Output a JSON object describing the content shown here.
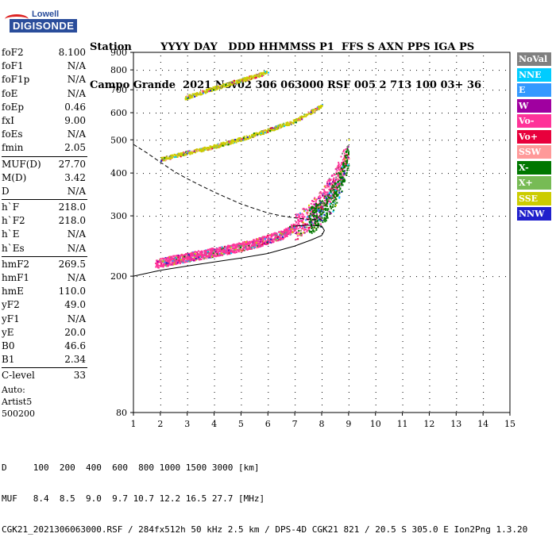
{
  "logo": {
    "line1": "Lowell",
    "line2": "DIGISONDE"
  },
  "header": {
    "line1": "Station        YYYY DAY   DDD HHMMSS P1  FFS S AXN PPS IGA PS",
    "line2": "Campo Grande  2021 Nov02 306 063000 RSF 005 2 713 100 03+ 36"
  },
  "params": [
    {
      "label": "foF2",
      "value": "8.100"
    },
    {
      "label": "foF1",
      "value": "N/A"
    },
    {
      "label": "foF1p",
      "value": "N/A"
    },
    {
      "label": "foE",
      "value": "N/A"
    },
    {
      "label": "foEp",
      "value": "0.46"
    },
    {
      "label": "fxI",
      "value": "9.00"
    },
    {
      "label": "foEs",
      "value": "N/A"
    },
    {
      "label": "fmin",
      "value": "2.05"
    },
    {
      "label": "MUF(D)",
      "value": "27.70"
    },
    {
      "label": "M(D)",
      "value": "3.42"
    },
    {
      "label": "D",
      "value": "N/A"
    },
    {
      "label": "h`F",
      "value": "218.0"
    },
    {
      "label": "h`F2",
      "value": "218.0"
    },
    {
      "label": "h`E",
      "value": "N/A"
    },
    {
      "label": "h`Es",
      "value": "N/A"
    },
    {
      "label": "hmF2",
      "value": "269.5"
    },
    {
      "label": "hmF1",
      "value": "N/A"
    },
    {
      "label": "hmE",
      "value": "110.0"
    },
    {
      "label": "yF2",
      "value": "49.0"
    },
    {
      "label": "yF1",
      "value": "N/A"
    },
    {
      "label": "yE",
      "value": "20.0"
    },
    {
      "label": "B0",
      "value": "46.6"
    },
    {
      "label": "B1",
      "value": "2.34"
    },
    {
      "label": "C-level",
      "value": "33"
    }
  ],
  "auto": {
    "line1": "Auto:",
    "line2": "Artist5",
    "line3": "500200"
  },
  "bottom": {
    "line1": "D     100  200  400  600  800 1000 1500 3000 [km]",
    "line2": "MUF   8.4  8.5  9.0  9.7 10.7 12.2 16.5 27.7 [MHz]",
    "line3": "CGK21_2021306063000.RSF / 284fx512h 50 kHz 2.5 km / DPS-4D CGK21 821 / 20.5 S 305.0 E Ion2Png 1.3.20"
  },
  "legend": [
    {
      "label": "NoVal",
      "color": "#808080"
    },
    {
      "label": "NNE",
      "color": "#00ccff"
    },
    {
      "label": "E",
      "color": "#3399ff"
    },
    {
      "label": "W",
      "color": "#a000a0"
    },
    {
      "label": "Vo-",
      "color": "#ff3399"
    },
    {
      "label": "Vo+",
      "color": "#e8003c"
    },
    {
      "label": "SSW",
      "color": "#ff9999"
    },
    {
      "label": "X-",
      "color": "#007700"
    },
    {
      "label": "X+",
      "color": "#77bb55"
    },
    {
      "label": "SSE",
      "color": "#cccc00"
    },
    {
      "label": "NNW",
      "color": "#2020cc"
    }
  ],
  "chart_data": {
    "type": "scatter",
    "xlim": [
      1,
      15
    ],
    "xticks": [
      "1",
      "2",
      "3",
      "4",
      "5",
      "6",
      "7",
      "8",
      "9",
      "10",
      "11",
      "12",
      "13",
      "14",
      "15"
    ],
    "yscale": "log",
    "ylim": [
      80,
      900
    ],
    "yticks": [
      "80",
      "200",
      "300",
      "400",
      "500",
      "600",
      "700",
      "800",
      "900"
    ],
    "grid": true,
    "traces": [
      {
        "name": "O-trace F2",
        "color": "#ff3399",
        "x": [
          1.8,
          2.5,
          3.5,
          4.5,
          5.5,
          6.5,
          7.0,
          7.5,
          8.0,
          8.5,
          8.9
        ],
        "y": [
          218,
          224,
          232,
          240,
          250,
          265,
          280,
          300,
          330,
          380,
          450
        ]
      },
      {
        "name": "X-trace F2",
        "color": "#007700",
        "x": [
          7.5,
          8.0,
          8.4,
          8.8,
          9.0
        ],
        "y": [
          290,
          310,
          340,
          400,
          470
        ]
      },
      {
        "name": "second hop",
        "color": "#cccc00",
        "x": [
          2.0,
          3.0,
          4.0,
          5.0,
          6.0,
          7.0,
          7.5,
          8.0
        ],
        "y": [
          440,
          460,
          480,
          505,
          535,
          570,
          600,
          630
        ]
      },
      {
        "name": "third hop",
        "color": "#cccc00",
        "x": [
          2.9,
          3.5,
          4.0,
          4.5,
          5.0,
          5.5,
          6.0
        ],
        "y": [
          665,
          690,
          710,
          730,
          750,
          770,
          790
        ]
      }
    ],
    "profile": {
      "solid_x": [
        1.0,
        2.0,
        3.0,
        4.0,
        5.0,
        6.0,
        7.0,
        7.6,
        8.0,
        8.1,
        8.0,
        7.5,
        7.0
      ],
      "solid_y": [
        200,
        208,
        214,
        220,
        226,
        233,
        245,
        255,
        263,
        272,
        280,
        282,
        280
      ],
      "dashed_x": [
        1.0,
        1.5,
        2.0,
        2.5,
        3.0,
        3.5,
        4.0,
        4.5,
        5.0,
        5.5,
        6.0,
        6.5,
        7.0,
        7.5,
        8.0
      ],
      "dashed_y": [
        485,
        458,
        430,
        405,
        385,
        368,
        352,
        338,
        325,
        315,
        306,
        300,
        296,
        293,
        292
      ]
    }
  }
}
